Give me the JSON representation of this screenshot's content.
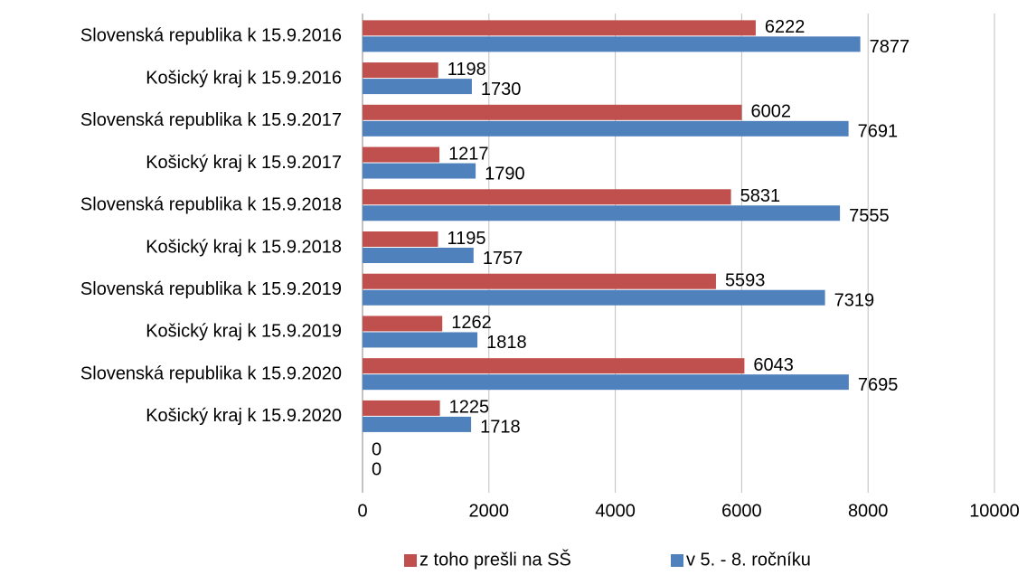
{
  "chart_data": {
    "type": "bar",
    "orientation": "horizontal",
    "categories": [
      "Slovenská republika k 15.9.2016",
      "Košický kraj k 15.9.2016",
      "Slovenská republika k 15.9.2017",
      "Košický kraj k 15.9.2017",
      "Slovenská republika k 15.9.2018",
      "Košický kraj k 15.9.2018",
      "Slovenská republika k 15.9.2019",
      "Košický kraj k 15.9.2019",
      "Slovenská republika k 15.9.2020",
      "Košický kraj k 15.9.2020",
      null
    ],
    "series": [
      {
        "name": "z toho prešli na SŠ",
        "color": "#c0504d",
        "values": [
          6222,
          1198,
          6002,
          1217,
          5831,
          1195,
          5593,
          1262,
          6043,
          1225,
          0
        ]
      },
      {
        "name": "v 5. - 8. ročníku",
        "color": "#4f81bd",
        "values": [
          7877,
          1730,
          7691,
          1790,
          7555,
          1757,
          7319,
          1818,
          7695,
          1718,
          0
        ]
      }
    ],
    "xlim": [
      0,
      10000
    ],
    "xticks": [
      0,
      2000,
      4000,
      6000,
      8000,
      10000
    ],
    "grid": true,
    "legend": "bottom"
  }
}
